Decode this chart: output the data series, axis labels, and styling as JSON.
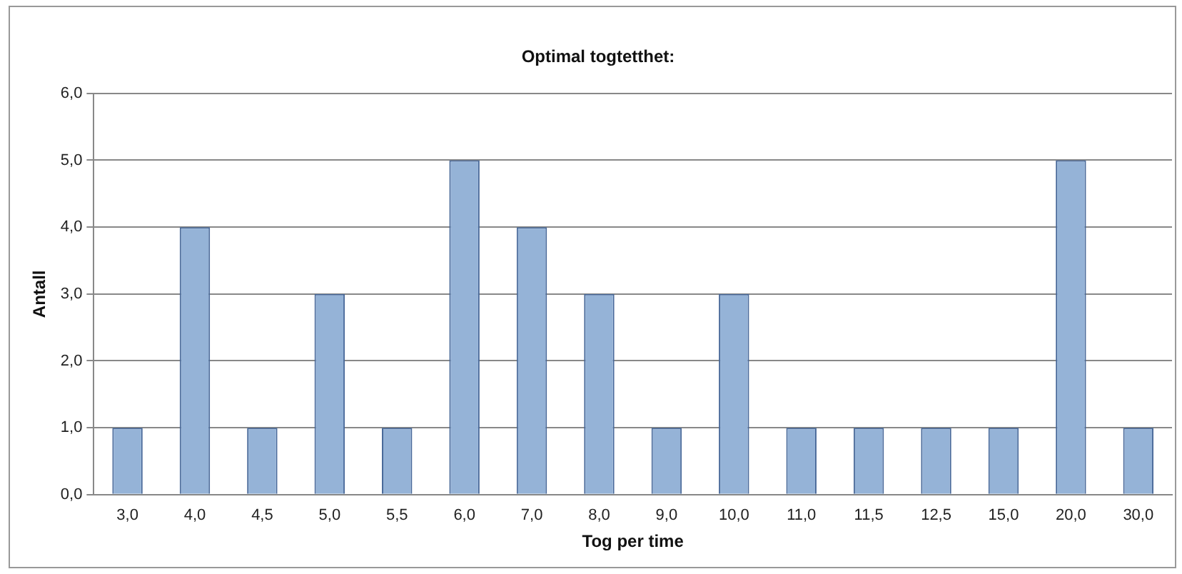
{
  "chart_data": {
    "type": "bar",
    "title": "Optimal togtetthet:",
    "xlabel": "Tog per time",
    "ylabel": "Antall",
    "categories": [
      "3,0",
      "4,0",
      "4,5",
      "5,0",
      "5,5",
      "6,0",
      "7,0",
      "8,0",
      "9,0",
      "10,0",
      "11,0",
      "11,5",
      "12,5",
      "15,0",
      "20,0",
      "30,0"
    ],
    "values": [
      1,
      4,
      1,
      3,
      1,
      5,
      4,
      3,
      1,
      3,
      1,
      1,
      1,
      1,
      5,
      1
    ],
    "color": "#95b3d7",
    "ylim": [
      0,
      6
    ],
    "yticks": [
      {
        "value": 0,
        "label": "0,0"
      },
      {
        "value": 1,
        "label": "1,0"
      },
      {
        "value": 2,
        "label": "2,0"
      },
      {
        "value": 3,
        "label": "3,0"
      },
      {
        "value": 4,
        "label": "4,0"
      },
      {
        "value": 5,
        "label": "5,0"
      },
      {
        "value": 6,
        "label": "6,0"
      }
    ],
    "grid": "y",
    "legend": false
  }
}
